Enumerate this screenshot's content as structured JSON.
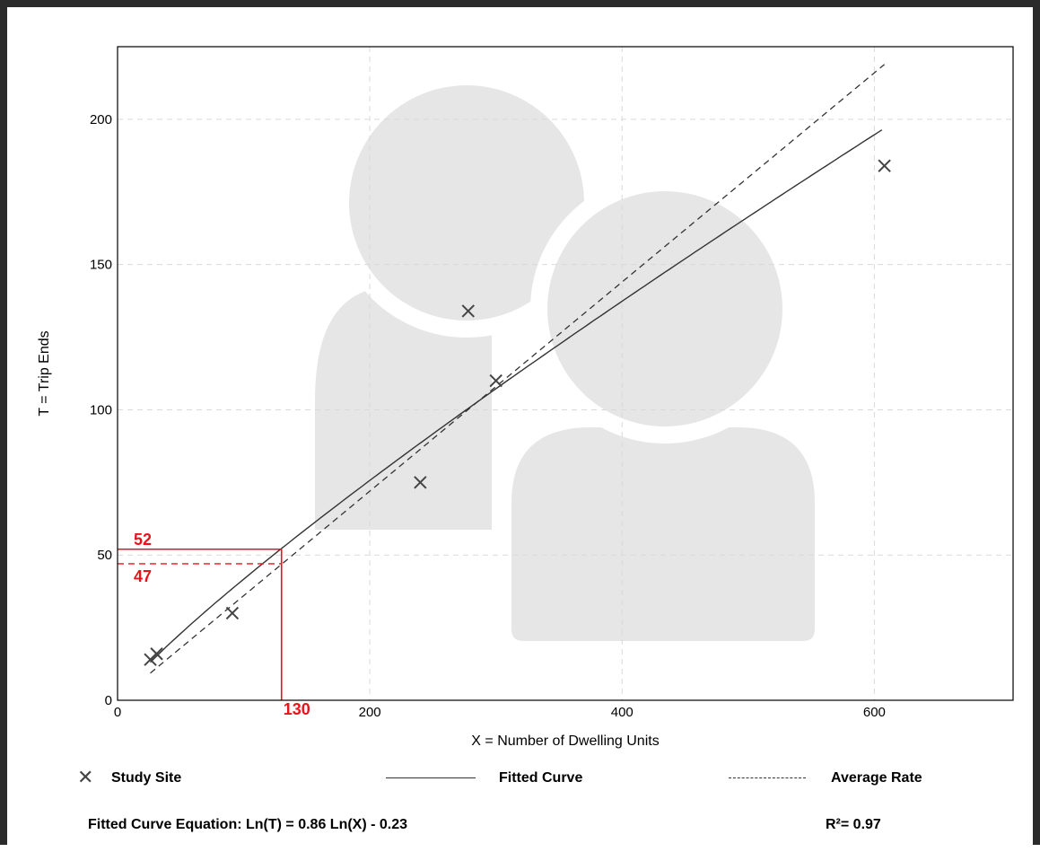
{
  "chart_data": {
    "type": "scatter",
    "xlabel": "X = Number of Dwelling Units",
    "ylabel": "T = Trip Ends",
    "xlim": [
      0,
      710
    ],
    "ylim": [
      0,
      225
    ],
    "x_ticks": [
      0,
      200,
      400,
      600
    ],
    "y_ticks": [
      0,
      50,
      100,
      150,
      200
    ],
    "grid": true,
    "series": [
      {
        "name": "Study Site",
        "style": "x-marker",
        "points": [
          [
            26,
            14
          ],
          [
            31,
            16
          ],
          [
            91,
            30
          ],
          [
            240,
            75
          ],
          [
            278,
            134
          ],
          [
            300,
            110
          ],
          [
            608,
            184
          ]
        ]
      },
      {
        "name": "Fitted Curve",
        "style": "solid-line",
        "equation": "Ln(T) = 0.86 Ln(X) - 0.23",
        "x_range": [
          26,
          608
        ]
      },
      {
        "name": "Average Rate",
        "style": "dashed-line",
        "rate": 0.36,
        "x_range": [
          26,
          608
        ]
      }
    ],
    "annotations": [
      {
        "label": "130",
        "x": 130,
        "kind": "x-value"
      },
      {
        "label": "52",
        "y": 52,
        "kind": "fitted-curve-value"
      },
      {
        "label": "47",
        "y": 47,
        "kind": "average-rate-value"
      }
    ],
    "annotation_color": "#e8141b"
  },
  "legend": {
    "study_site": "Study Site",
    "fitted_curve": "Fitted Curve",
    "average_rate": "Average Rate"
  },
  "footer": {
    "equation": "Fitted Curve Equation: Ln(T) = 0.86 Ln(X) - 0.23",
    "r_squared": "R²= 0.97"
  },
  "colors": {
    "frame": "#2b2b2b",
    "grid": "#d9d9d9",
    "watermark": "#e6e6e6",
    "data": "#444444",
    "annotation": "#e8141b"
  },
  "icons": {
    "watermark": "users-icon",
    "study_site_marker": "x-mark-icon"
  }
}
